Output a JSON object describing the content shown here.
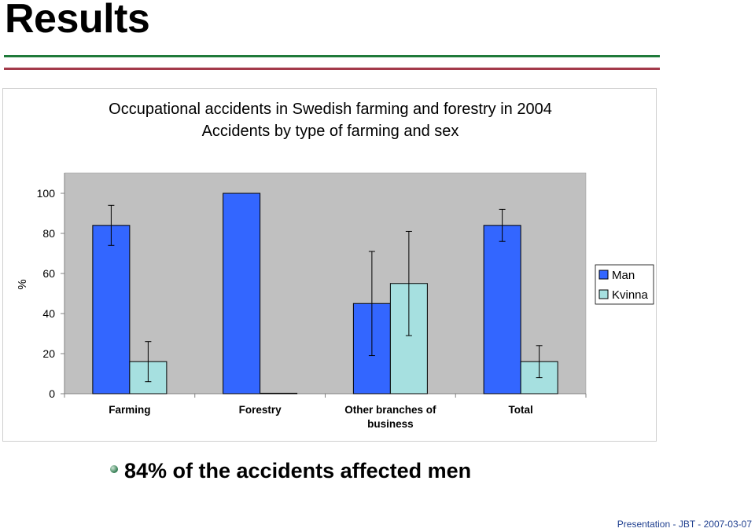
{
  "slide": {
    "title": "Results",
    "bullet": "84% of the accidents affected men",
    "footer": "Presentation  -  JBT  -  2007-03-07"
  },
  "chart_data": {
    "type": "bar",
    "title": "Occupational accidents in Swedish farming and forestry in 2004",
    "subtitle": "Accidents by type of farming and sex",
    "xlabel": "",
    "ylabel": "%",
    "ylim": [
      0,
      100
    ],
    "yticks": [
      0,
      20,
      40,
      60,
      80,
      100
    ],
    "categories": [
      "Farming",
      "Forestry",
      "Other branches of business",
      "Total"
    ],
    "series": [
      {
        "name": "Man",
        "color": "#3366ff",
        "values": [
          84,
          100,
          45,
          84
        ],
        "error_low": [
          74,
          null,
          19,
          76
        ],
        "error_high": [
          94,
          null,
          71,
          92
        ]
      },
      {
        "name": "Kvinna",
        "color": "#a6e0e0",
        "values": [
          16,
          0,
          55,
          16
        ],
        "error_low": [
          6,
          null,
          29,
          8
        ],
        "error_high": [
          26,
          null,
          81,
          24
        ]
      }
    ],
    "legend": "right",
    "plot_background": "#c0c0c0",
    "grid": false
  }
}
